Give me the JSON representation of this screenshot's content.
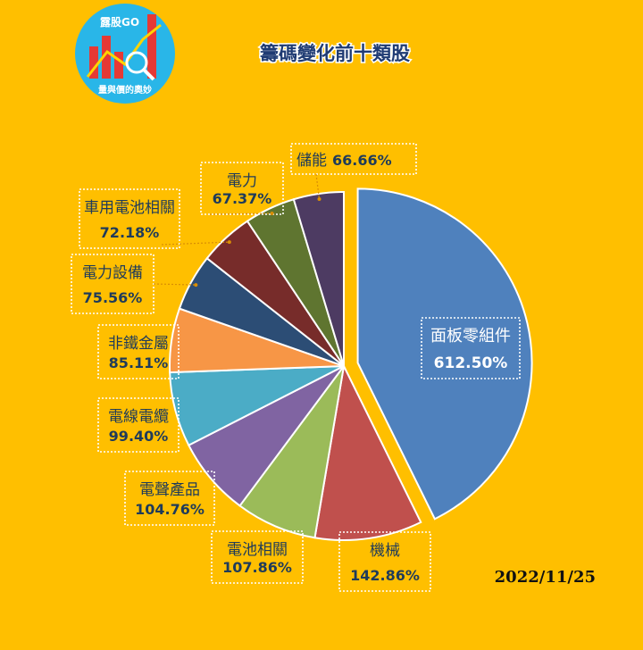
{
  "logo": {
    "top_text": "露股GO",
    "bottom_text": "量與價的奧妙"
  },
  "title": "籌碼變化前十類股",
  "date": "2022/11/25",
  "chart_data": {
    "type": "pie",
    "title": "籌碼變化前十類股",
    "categories": [
      "面板零組件",
      "機械",
      "電池相關",
      "電聲產品",
      "電線電纜",
      "非鐵金屬",
      "電力設備",
      "車用電池相關",
      "電力",
      "儲能"
    ],
    "values": [
      612.5,
      142.86,
      107.86,
      104.76,
      99.4,
      85.11,
      75.56,
      72.18,
      67.37,
      66.66
    ],
    "value_labels": [
      "612.50%",
      "142.86%",
      "107.86%",
      "104.76%",
      "99.40%",
      "85.11%",
      "75.56%",
      "72.18%",
      "67.37%",
      "66.66%"
    ],
    "colors": [
      "#4F81BD",
      "#C0504D",
      "#9BBB59",
      "#8064A2",
      "#4BACC6",
      "#F79646",
      "#2C4D75",
      "#772C2A",
      "#5F7530",
      "#4D3B62"
    ],
    "exploded": [
      "面板零組件"
    ],
    "legend": "none",
    "labels": "outside with leader lines"
  }
}
